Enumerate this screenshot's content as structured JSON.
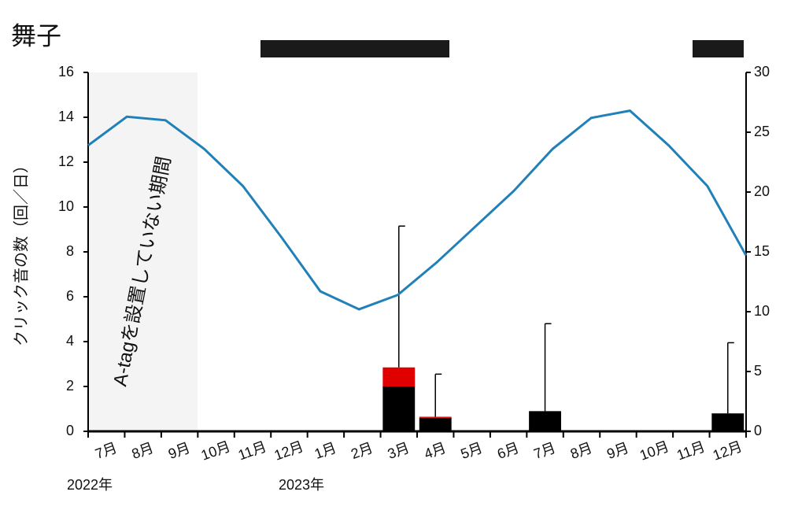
{
  "chart_data": {
    "type": "bar",
    "title": "舞子",
    "y_label": "クリック音の数（回／日）",
    "annotation": "A-tagを設置していない期間",
    "year_labels": [
      "2022年",
      "2023年"
    ],
    "categories": [
      "7月",
      "8月",
      "9月",
      "10月",
      "11月",
      "12月",
      "1月",
      "2月",
      "3月",
      "4月",
      "5月",
      "6月",
      "7月",
      "8月",
      "9月",
      "10月",
      "11月",
      "12月"
    ],
    "series": [
      {
        "color": "#000000",
        "values": [
          0,
          0,
          0,
          0,
          0,
          0,
          0,
          0,
          2.0,
          0.6,
          0,
          0,
          0.9,
          0,
          0,
          0,
          0,
          0.8
        ]
      },
      {
        "color": "#e00000",
        "values": [
          0,
          0,
          0,
          0,
          0,
          0,
          0,
          0,
          0.85,
          0.05,
          0,
          0,
          0,
          0,
          0,
          0,
          0,
          0
        ]
      },
      {
        "type": "line",
        "axis": "y2",
        "color": "#2080b8",
        "values": [
          23.9,
          26.3,
          26.0,
          23.6,
          20.5,
          16.2,
          11.7,
          10.2,
          11.4,
          14.1,
          17.1,
          20.1,
          23.6,
          26.2,
          26.8,
          23.9,
          20.5,
          14.7
        ]
      }
    ],
    "errors": [
      null,
      null,
      null,
      null,
      null,
      null,
      null,
      null,
      6.3,
      1.9,
      null,
      null,
      3.9,
      null,
      null,
      null,
      null,
      3.15
    ],
    "ylim": [
      0,
      16
    ],
    "yticks": [
      0,
      2,
      4,
      6,
      8,
      10,
      12,
      14,
      16
    ],
    "y2lim": [
      0,
      30
    ],
    "y2ticks": [
      0,
      5,
      10,
      15,
      20,
      25,
      30
    ]
  }
}
